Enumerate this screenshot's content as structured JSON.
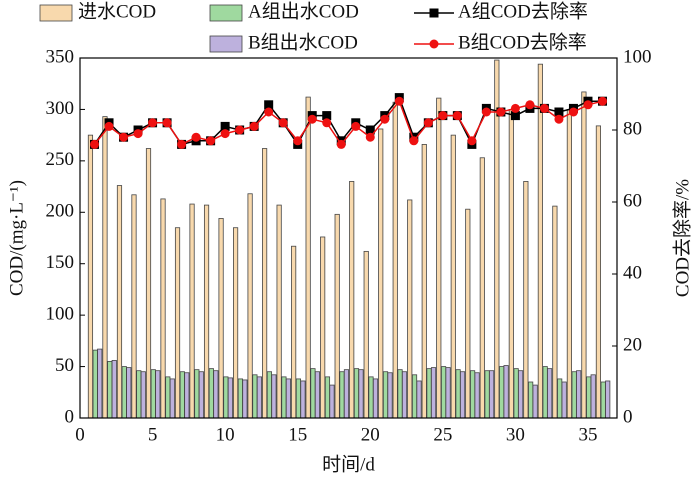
{
  "chart_data": {
    "type": "bar",
    "x_label": "时间/d",
    "y_label": "COD/(mg·L⁻¹)",
    "y2_label": "COD去除率/%",
    "x": [
      1,
      2,
      3,
      4,
      5,
      6,
      7,
      8,
      9,
      10,
      11,
      12,
      13,
      14,
      15,
      16,
      17,
      18,
      19,
      20,
      21,
      22,
      23,
      24,
      25,
      26,
      27,
      28,
      29,
      30,
      31,
      32,
      33,
      34,
      35,
      36
    ],
    "series": [
      {
        "name": "进水COD",
        "type": "bar",
        "color": "#f8d9ad",
        "values": [
          275,
          293,
          226,
          217,
          262,
          213,
          185,
          208,
          207,
          194,
          185,
          218,
          262,
          207,
          167,
          312,
          176,
          198,
          230,
          162,
          281,
          307,
          212,
          266,
          311,
          275,
          203,
          253,
          348,
          300,
          230,
          344,
          206,
          300,
          317,
          284
        ]
      },
      {
        "name": "A组出水COD",
        "type": "bar",
        "color": "#9fd99f",
        "values": [
          66,
          55,
          50,
          46,
          47,
          40,
          45,
          47,
          48,
          40,
          38,
          42,
          45,
          40,
          38,
          48,
          40,
          45,
          48,
          40,
          45,
          47,
          42,
          48,
          50,
          47,
          46,
          46,
          50,
          48,
          35,
          50,
          38,
          45,
          40,
          35
        ]
      },
      {
        "name": "B组出水COD",
        "type": "bar",
        "color": "#bdb1dd",
        "values": [
          67,
          56,
          49,
          45,
          46,
          38,
          44,
          45,
          46,
          39,
          37,
          40,
          42,
          38,
          36,
          45,
          32,
          47,
          47,
          38,
          44,
          45,
          36,
          49,
          49,
          45,
          44,
          46,
          51,
          46,
          32,
          48,
          35,
          46,
          42,
          36
        ]
      },
      {
        "name": "A组COD去除率",
        "type": "line",
        "axis": "y2",
        "color": "#000000",
        "values": [
          76,
          82,
          78,
          80,
          82,
          82,
          76,
          77,
          77,
          81,
          80,
          81,
          87,
          82,
          76,
          84,
          84,
          77,
          82,
          80,
          84,
          89,
          78,
          82,
          84,
          84,
          76,
          86,
          85,
          84,
          86,
          86,
          85,
          86,
          88,
          88
        ]
      },
      {
        "name": "B组COD去除率",
        "type": "line",
        "axis": "y2",
        "color": "#ee1111",
        "values": [
          76,
          81,
          78,
          79,
          82,
          82,
          76,
          78,
          77,
          79,
          80,
          81,
          85,
          82,
          77,
          83,
          82,
          76,
          81,
          78,
          83,
          88,
          77,
          82,
          84,
          84,
          77,
          85,
          85,
          86,
          87,
          86,
          83,
          85,
          87,
          88
        ]
      }
    ],
    "xlim": [
      0,
      37
    ],
    "xticks": [
      0,
      5,
      10,
      15,
      20,
      25,
      30,
      35
    ],
    "ylim": [
      0,
      350
    ],
    "yticks": [
      0,
      50,
      100,
      150,
      200,
      250,
      300,
      350
    ],
    "y2lim": [
      0,
      100
    ],
    "y2ticks": [
      0,
      20,
      40,
      60,
      80,
      100
    ]
  }
}
